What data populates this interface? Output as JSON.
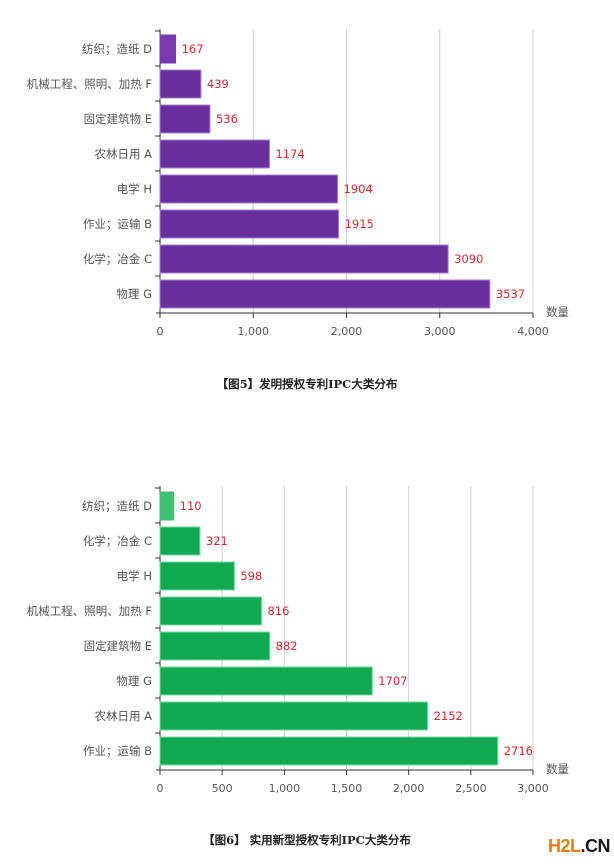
{
  "chart_data": [
    {
      "type": "bar",
      "orientation": "horizontal",
      "title": "【图5】发明授权专利IPC大类分布",
      "xlabel": "数量",
      "xlim": [
        0,
        4000
      ],
      "xticks": [
        "0",
        "1,000",
        "2,000",
        "3,000",
        "4,000"
      ],
      "xtick_values": [
        0,
        1000,
        2000,
        3000,
        4000
      ],
      "grid": true,
      "categories": [
        "纺织；造纸 D",
        "机械工程、照明、加热 F",
        "固定建筑物 E",
        "农林日用 A",
        "电学 H",
        "作业；运输 B",
        "化学；冶金 C",
        "物理 G"
      ],
      "values": [
        167,
        439,
        536,
        1174,
        1904,
        1915,
        3090,
        3537
      ],
      "color": "#6a2e9e",
      "first_color": "#7a3aae",
      "label_color": "#e0242b"
    },
    {
      "type": "bar",
      "orientation": "horizontal",
      "title": "【图6】 实用新型授权专利IPC大类分布",
      "xlabel": "数量",
      "xlim": [
        0,
        3000
      ],
      "xticks": [
        "0",
        "500",
        "1,000",
        "1,500",
        "2,000",
        "2,500",
        "3,000"
      ],
      "xtick_values": [
        0,
        500,
        1000,
        1500,
        2000,
        2500,
        3000
      ],
      "grid": true,
      "categories": [
        "纺织；造纸 D",
        "化学；冶金 C",
        "电学 H",
        "机械工程、照明、加热 F",
        "固定建筑物 E",
        "物理 G",
        "农林日用 A",
        "作业；运输 B"
      ],
      "values": [
        110,
        321,
        598,
        816,
        882,
        1707,
        2152,
        2716
      ],
      "color": "#10a94f",
      "first_color": "#3fc073",
      "label_color": "#e0242b"
    }
  ],
  "watermark": {
    "part1": "H2L",
    "part2": ".CN"
  }
}
